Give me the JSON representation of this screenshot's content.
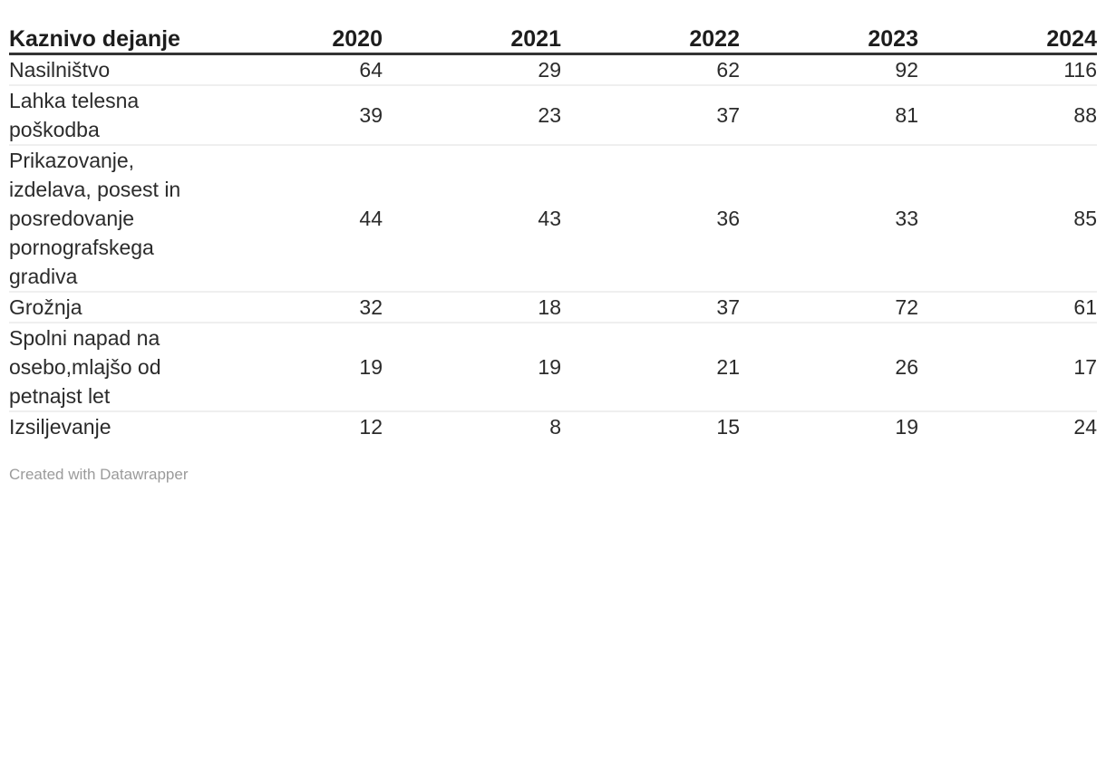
{
  "chart_data": {
    "type": "table",
    "title": "",
    "label_column": "Kaznivo dejanje",
    "year_columns": [
      "2020",
      "2021",
      "2022",
      "2023",
      "2024"
    ],
    "rows": [
      {
        "label": "Nasilništvo",
        "values": [
          64,
          29,
          62,
          92,
          116
        ]
      },
      {
        "label": "Lahka telesna poškodba",
        "values": [
          39,
          23,
          37,
          81,
          88
        ]
      },
      {
        "label": "Prikazovanje, izdelava, posest in posredovanje pornografskega gradiva",
        "values": [
          44,
          43,
          36,
          33,
          85
        ]
      },
      {
        "label": "Grožnja",
        "values": [
          32,
          18,
          37,
          72,
          61
        ]
      },
      {
        "label": "Spolni napad na osebo,mlajšo od petnajst let",
        "values": [
          19,
          19,
          21,
          26,
          17
        ]
      },
      {
        "label": "Izsiljevanje",
        "values": [
          12,
          8,
          15,
          19,
          24
        ]
      }
    ],
    "layout_hints": {
      "numeric_alignment": "right",
      "header_rule_color": "#333333",
      "row_separator_color": "#efefef",
      "grid": "horizontal-only"
    }
  },
  "footer": {
    "attribution": "Created with Datawrapper"
  },
  "colors": {
    "background": "#ffffff",
    "header_text": "#1d1d1d",
    "body_text": "#2b2b2b",
    "attribution_text": "#9b9b9b"
  }
}
